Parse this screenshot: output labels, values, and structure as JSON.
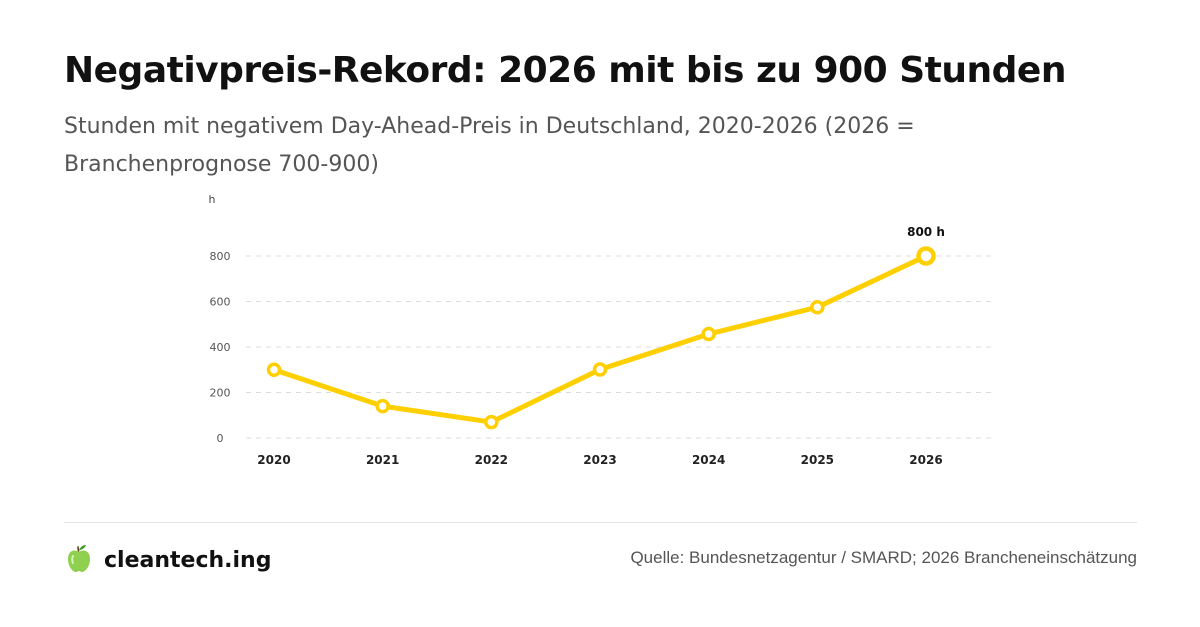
{
  "header": {
    "title": "Negativpreis-Rekord: 2026 mit bis zu 900 Stunden",
    "subtitle": "Stunden mit negativem Day-Ahead-Preis in Deutschland, 2020-2026 (2026 = Branchenprognose 700-900)"
  },
  "chart_data": {
    "type": "line",
    "title": "",
    "xlabel": "",
    "ylabel": "h",
    "categories": [
      "2020",
      "2021",
      "2022",
      "2023",
      "2024",
      "2025",
      "2026"
    ],
    "series": [
      {
        "values": [
          300,
          140,
          70,
          301,
          457,
          575,
          800
        ]
      }
    ],
    "ylim": [
      0,
      800
    ],
    "yticks": [
      0,
      200,
      400,
      600,
      800
    ],
    "grid": true,
    "line_color": "#FFCF00",
    "annotations": [
      {
        "category": "2026",
        "value": 800,
        "text": "800 h"
      }
    ]
  },
  "footer": {
    "brand": "cleantech.ing",
    "logo_icon": "green-apple-icon",
    "source": "Quelle: Bundesnetzagentur / SMARD; 2026 Brancheneinschätzung"
  }
}
